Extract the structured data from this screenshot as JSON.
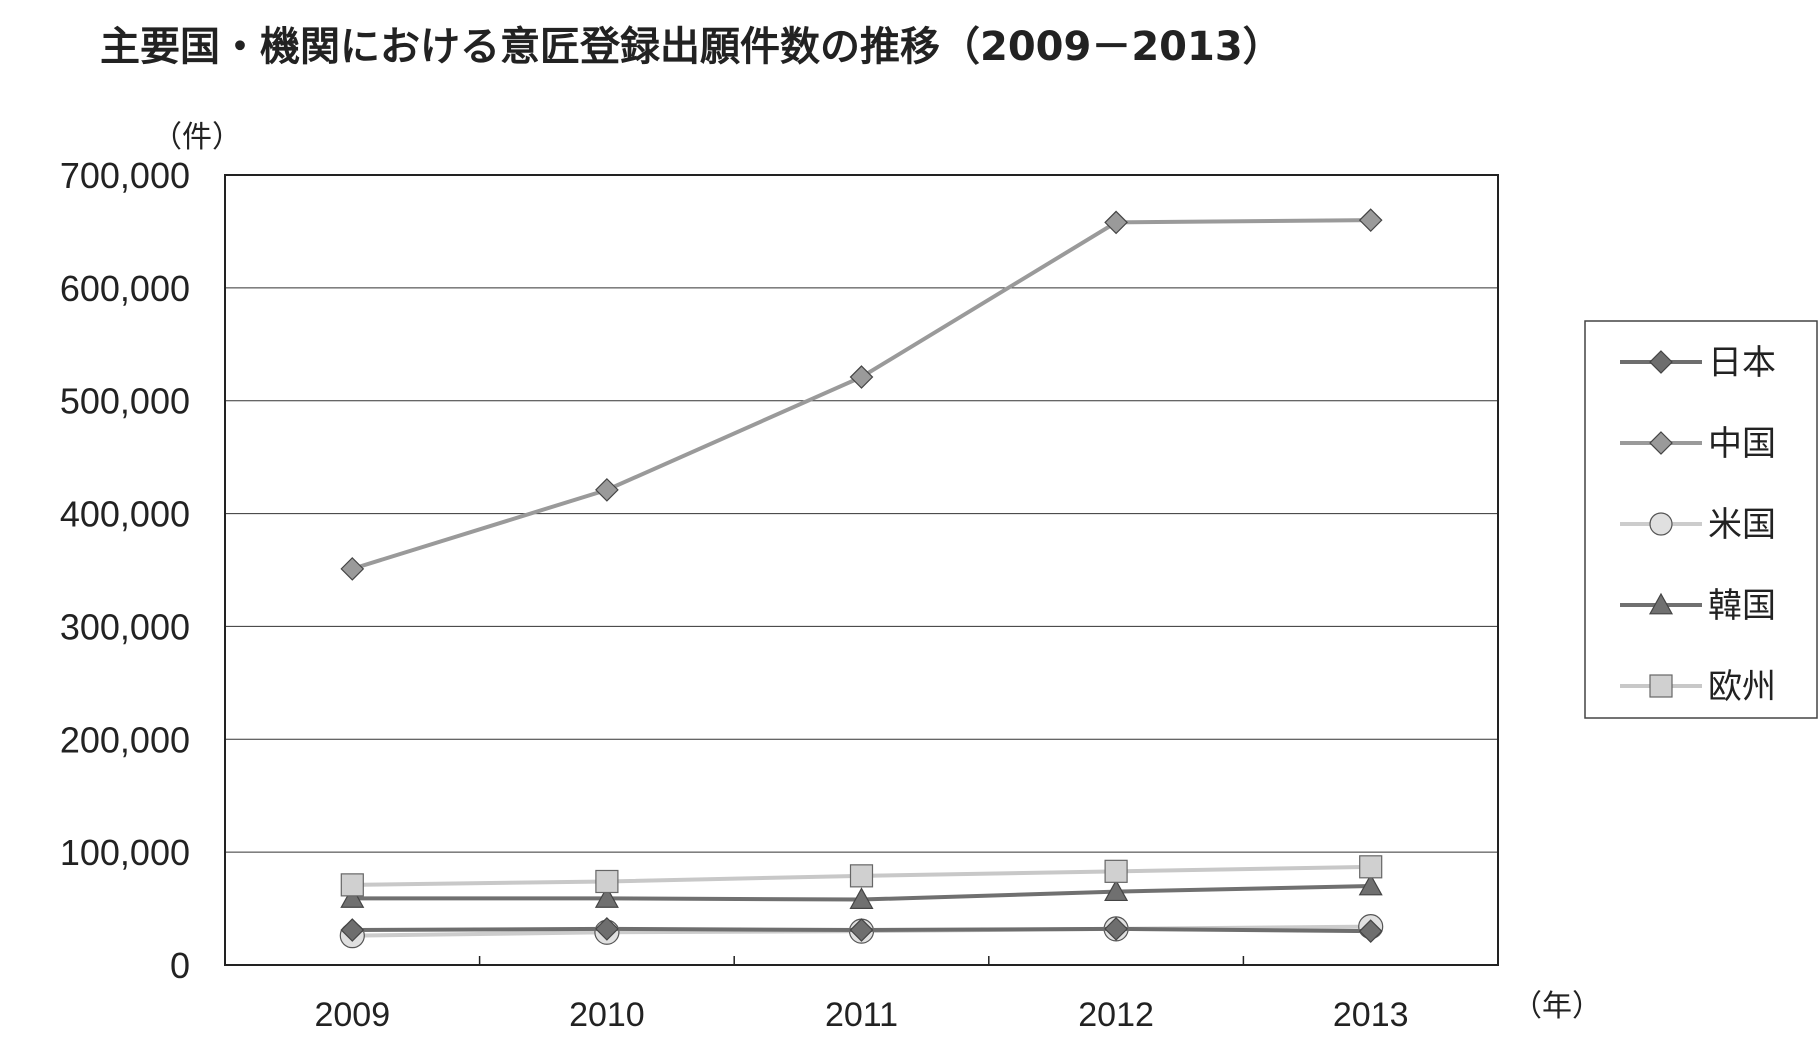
{
  "title": "主要国・機関における意匠登録出願件数の推移（2009－2013）",
  "chart_data": {
    "type": "line",
    "title": "主要国・機関における意匠登録出願件数の推移（2009－2013）",
    "y_unit": "（件）",
    "x_unit": "（年）",
    "categories": [
      "2009",
      "2010",
      "2011",
      "2012",
      "2013"
    ],
    "y_ticks": [
      "0",
      "100,000",
      "200,000",
      "300,000",
      "400,000",
      "500,000",
      "600,000",
      "700,000"
    ],
    "ylim": [
      0,
      700000
    ],
    "grid": true,
    "legend_position": "right",
    "series": [
      {
        "name": "日本",
        "marker": "diamond",
        "color": "#6e6e6e",
        "values": [
          31000,
          32000,
          31000,
          32000,
          30000
        ]
      },
      {
        "name": "中国",
        "marker": "diamond",
        "color": "#9a9a9a",
        "values": [
          351000,
          421000,
          521000,
          658000,
          660000
        ]
      },
      {
        "name": "米国",
        "marker": "circle",
        "color": "#cccccc",
        "values": [
          26000,
          29000,
          30000,
          32000,
          34000
        ]
      },
      {
        "name": "韓国",
        "marker": "triangle",
        "color": "#707070",
        "values": [
          59000,
          59000,
          58000,
          65000,
          70000
        ]
      },
      {
        "name": "欧州",
        "marker": "square",
        "color": "#c8c8c8",
        "values": [
          71000,
          74000,
          79000,
          83000,
          87000
        ]
      }
    ]
  }
}
